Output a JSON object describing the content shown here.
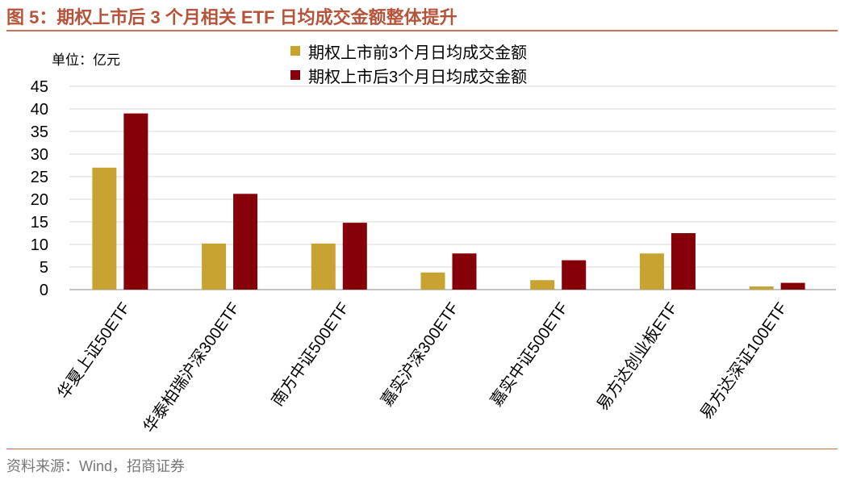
{
  "title": "图 5：期权上市后 3 个月相关 ETF 日均成交金额整体提升",
  "unit_label": "单位：亿元",
  "source": "资料来源：Wind，招商证券",
  "colors": {
    "title": "#b5543a",
    "series_before": "#c9a332",
    "series_after": "#850008",
    "grid": "#d9d9d9"
  },
  "chart_data": {
    "type": "bar",
    "categories": [
      "华夏上证50ETF",
      "华泰柏瑞沪深300ETF",
      "南方中证500ETF",
      "嘉实沪深300ETF",
      "嘉实中证500ETF",
      "易方达创业板ETF",
      "易方达深证100ETF"
    ],
    "series": [
      {
        "name": "期权上市前3个月日均成交金额",
        "values": [
          27,
          10.2,
          10.2,
          3.8,
          2.1,
          8.0,
          0.7
        ]
      },
      {
        "name": "期权上市后3个月日均成交金额",
        "values": [
          39,
          21.2,
          14.8,
          8.0,
          6.5,
          12.5,
          1.5
        ]
      }
    ],
    "yticks": [
      0,
      5,
      10,
      15,
      20,
      25,
      30,
      35,
      40,
      45
    ],
    "ylim": [
      0,
      45
    ],
    "grid": true,
    "legend_position": "top-center"
  }
}
